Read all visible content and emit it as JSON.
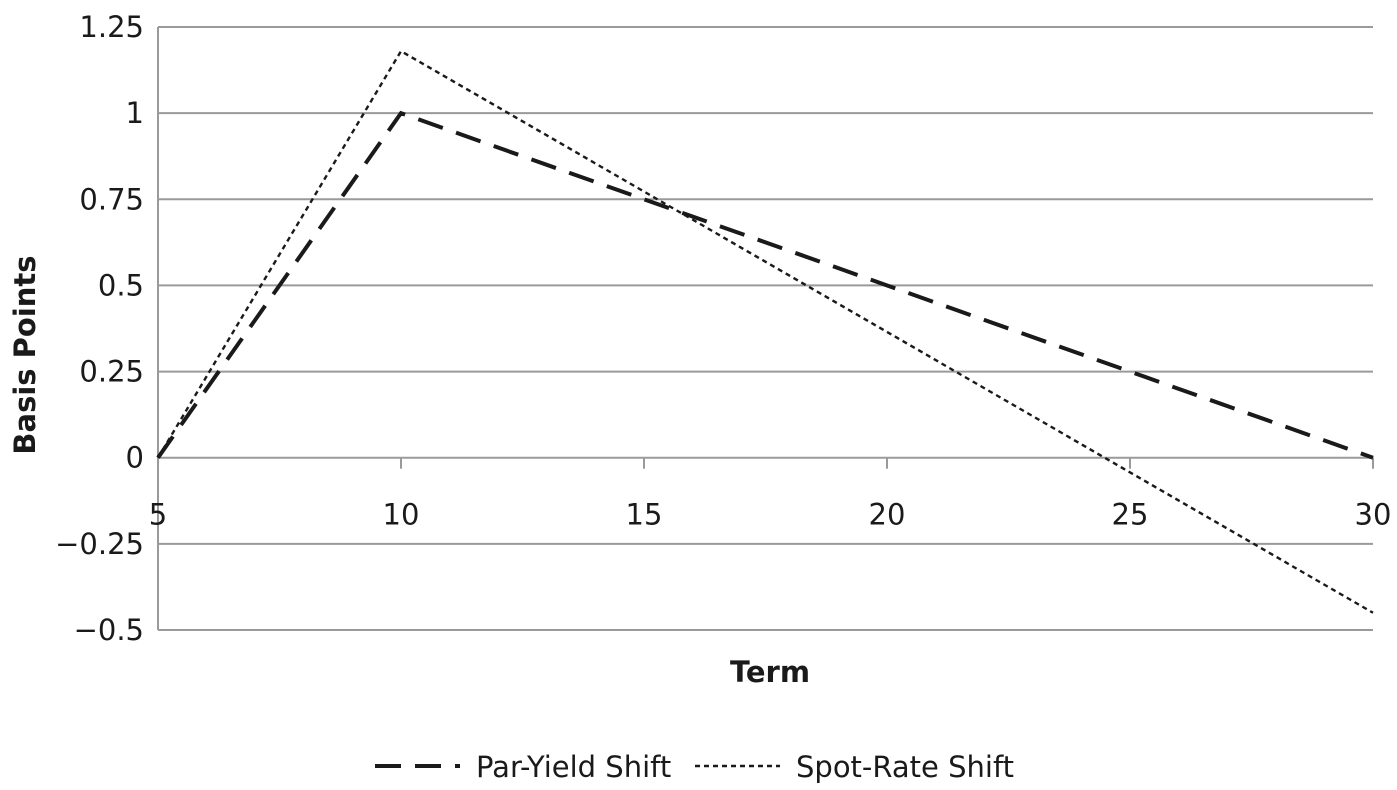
{
  "chart_data": {
    "type": "line",
    "title": "",
    "xlabel": "Term",
    "ylabel": "Basis Points",
    "xlim": [
      5,
      30
    ],
    "ylim": [
      -0.5,
      1.25
    ],
    "x_ticks": [
      5,
      10,
      15,
      20,
      25,
      30
    ],
    "x_tick_labels": [
      "5",
      "10",
      "15",
      "20",
      "25",
      "30"
    ],
    "y_ticks": [
      1.25,
      1,
      0.75,
      0.5,
      0.25,
      0,
      -0.25,
      -0.5
    ],
    "y_tick_labels": [
      "1.25",
      "1",
      "0.75",
      "0.5",
      "0.25",
      "0",
      "−0.25",
      "−0.5"
    ],
    "grid": "horizontal",
    "legend_position": "bottom",
    "series": [
      {
        "name": "Par-Yield Shift",
        "style": "long-dash",
        "color": "#1a1a1a",
        "x": [
          5,
          10,
          30
        ],
        "values": [
          0,
          1,
          0
        ]
      },
      {
        "name": "Spot-Rate Shift",
        "style": "dotted",
        "color": "#1a1a1a",
        "x": [
          5,
          10,
          30
        ],
        "values": [
          0,
          1.18,
          -0.45
        ]
      }
    ],
    "colors": {
      "grid": "#9a9a9a",
      "axis": "#9a9a9a",
      "line": "#1a1a1a"
    }
  }
}
